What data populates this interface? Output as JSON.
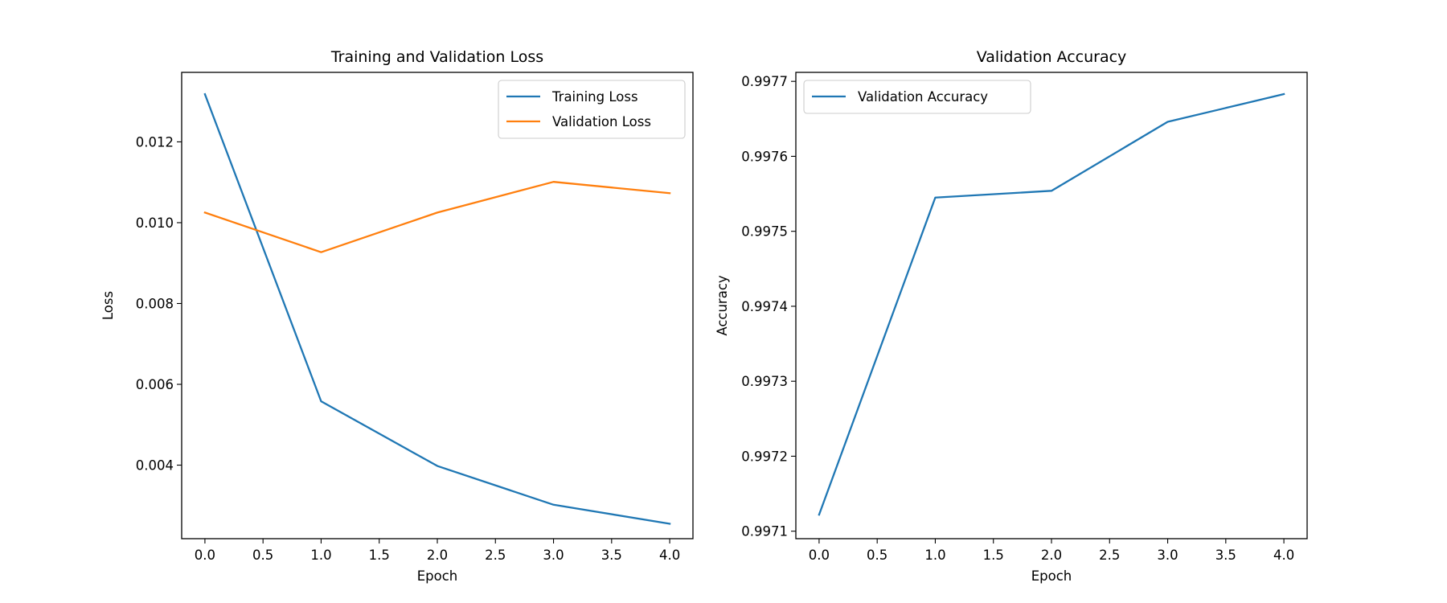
{
  "chart_data": [
    {
      "type": "line",
      "title": "Training and Validation Loss",
      "xlabel": "Epoch",
      "ylabel": "Loss",
      "x": [
        0,
        1,
        2,
        3,
        4
      ],
      "xlim": [
        -0.2,
        4.2
      ],
      "ylim": [
        0.00218,
        0.01372
      ],
      "xticks": [
        0.0,
        0.5,
        1.0,
        1.5,
        2.0,
        2.5,
        3.0,
        3.5,
        4.0
      ],
      "xtick_labels": [
        "0.0",
        "0.5",
        "1.0",
        "1.5",
        "2.0",
        "2.5",
        "3.0",
        "3.5",
        "4.0"
      ],
      "yticks": [
        0.004,
        0.006,
        0.008,
        0.01,
        0.012
      ],
      "ytick_labels": [
        "0.004",
        "0.006",
        "0.008",
        "0.010",
        "0.012"
      ],
      "series": [
        {
          "name": "Training Loss",
          "color": "#1f77b4",
          "values": [
            0.01318,
            0.00558,
            0.00398,
            0.00302,
            0.00255
          ]
        },
        {
          "name": "Validation Loss",
          "color": "#ff7f0e",
          "values": [
            0.01025,
            0.00927,
            0.01025,
            0.01101,
            0.01073
          ]
        }
      ],
      "legend": "upper right",
      "grid": false
    },
    {
      "type": "line",
      "title": "Validation Accuracy",
      "xlabel": "Epoch",
      "ylabel": "Accuracy",
      "x": [
        0,
        1,
        2,
        3,
        4
      ],
      "xlim": [
        -0.2,
        4.2
      ],
      "ylim": [
        0.99709,
        0.997712
      ],
      "xticks": [
        0.0,
        0.5,
        1.0,
        1.5,
        2.0,
        2.5,
        3.0,
        3.5,
        4.0
      ],
      "xtick_labels": [
        "0.0",
        "0.5",
        "1.0",
        "1.5",
        "2.0",
        "2.5",
        "3.0",
        "3.5",
        "4.0"
      ],
      "yticks": [
        0.9971,
        0.9972,
        0.9973,
        0.9974,
        0.9975,
        0.9976,
        0.9977
      ],
      "ytick_labels": [
        "0.9971",
        "0.9972",
        "0.9973",
        "0.9974",
        "0.9975",
        "0.9976",
        "0.9977"
      ],
      "series": [
        {
          "name": "Validation Accuracy",
          "color": "#1f77b4",
          "values": [
            0.997122,
            0.997545,
            0.997554,
            0.997646,
            0.997683
          ]
        }
      ],
      "legend": "upper left",
      "grid": false
    }
  ]
}
